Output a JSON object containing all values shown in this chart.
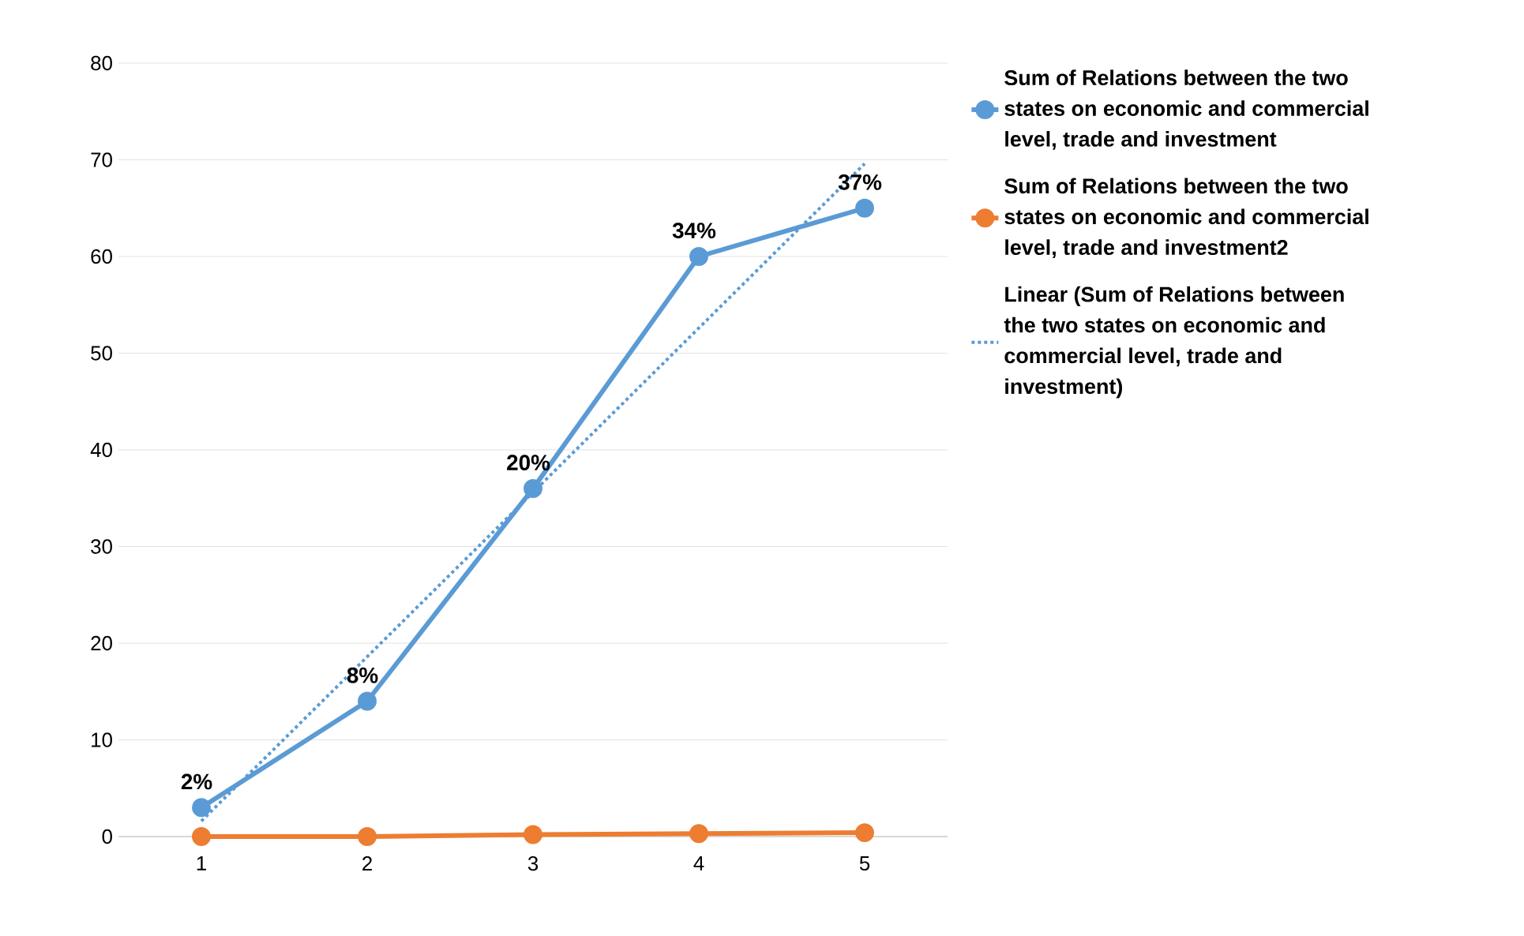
{
  "chart_data": {
    "type": "line",
    "x": [
      1,
      2,
      3,
      4,
      5
    ],
    "xlim": [
      0.5,
      5.5
    ],
    "xticks": [
      1,
      2,
      3,
      4,
      5
    ],
    "ylim": [
      0,
      80
    ],
    "yticks": [
      0,
      10,
      20,
      30,
      40,
      50,
      60,
      70,
      80
    ],
    "grid": "y",
    "legend": "right",
    "marker": "circle",
    "series": [
      {
        "name": "Sum of Relations between the two states on economic and commercial level, trade and investment",
        "color": "#5b9bd5",
        "values": [
          3,
          14,
          36,
          60,
          65
        ]
      },
      {
        "name": "Sum of Relations between the two states on economic and commercial level, trade and investment2",
        "color": "#ed7d31",
        "values": [
          0,
          0,
          0.2,
          0.3,
          0.4
        ]
      },
      {
        "name": "Linear (Sum of Relations between the two states on economic and commercial level, trade and investment)",
        "color": "#5b9bd5",
        "type": "line",
        "x": [
          1,
          5
        ],
        "values": [
          1.6,
          69.6
        ],
        "marker": "none",
        "line_style": "dotted"
      }
    ],
    "annotations": [
      {
        "text": "2%",
        "x": 1,
        "y": 3
      },
      {
        "text": "8%",
        "x": 2,
        "y": 14
      },
      {
        "text": "20%",
        "x": 3,
        "y": 36
      },
      {
        "text": "34%",
        "x": 4,
        "y": 60
      },
      {
        "text": "37%",
        "x": 5,
        "y": 65
      }
    ]
  }
}
